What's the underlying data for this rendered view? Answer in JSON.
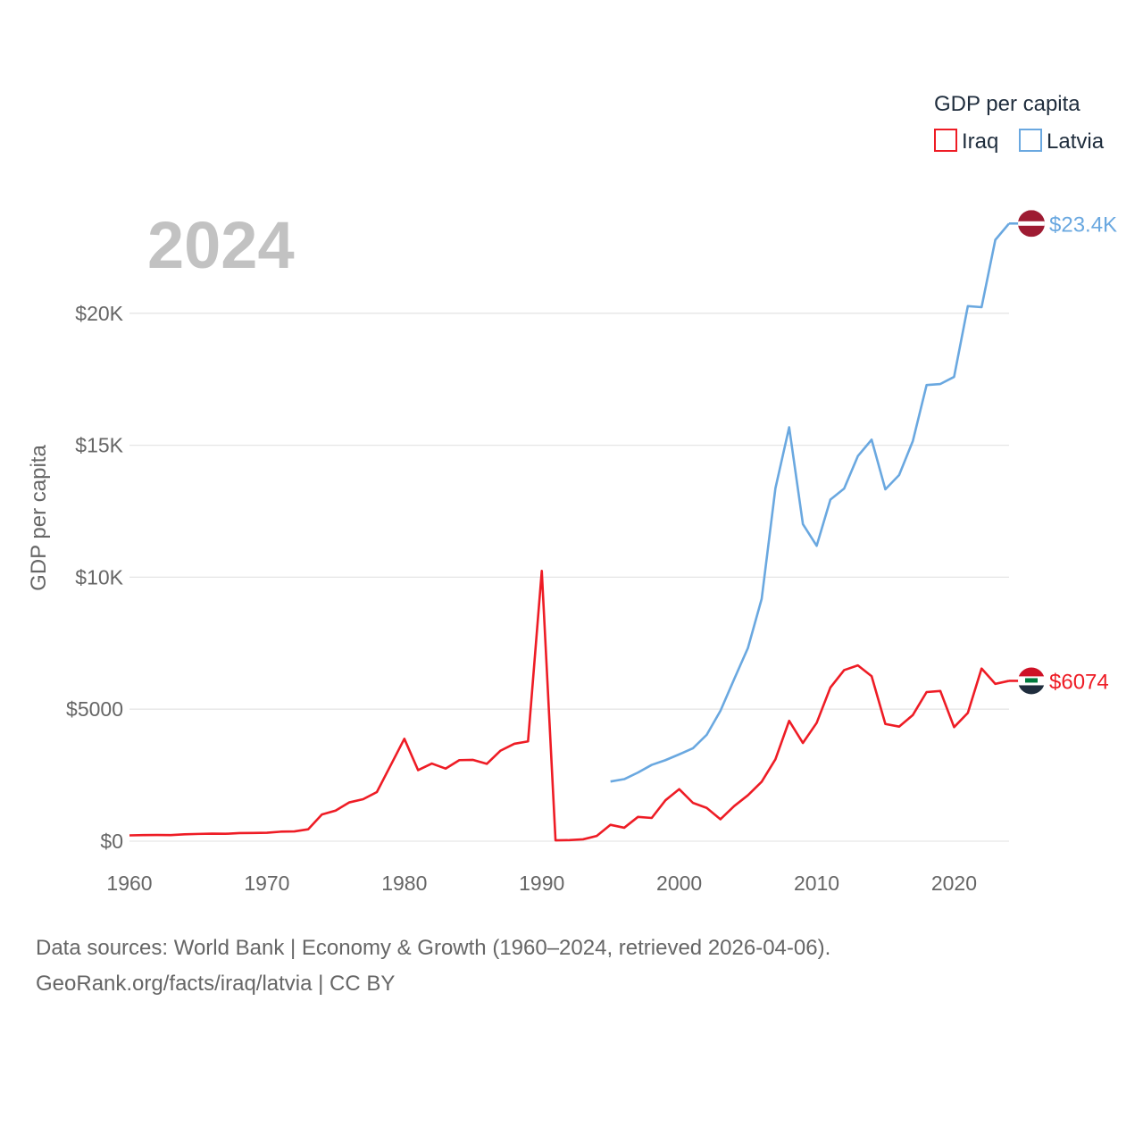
{
  "chart_data": {
    "type": "line",
    "year_label": "2024",
    "ylabel": "GDP per capita",
    "xlim": [
      1960,
      2024
    ],
    "ylim": [
      0,
      25000
    ],
    "x_ticks": [
      1960,
      1970,
      1980,
      1990,
      2000,
      2010,
      2020
    ],
    "y_ticks": [
      0,
      5000,
      10000,
      15000,
      20000
    ],
    "y_tick_labels": [
      "$0",
      "$5000",
      "$10K",
      "$15K",
      "$20K"
    ],
    "legend": {
      "title": "GDP per capita",
      "position": "top-right"
    },
    "series": [
      {
        "name": "Iraq",
        "color": "#ee1c25",
        "end_label": "$6074",
        "flag": "iraq-flag",
        "points": [
          [
            1960,
            220
          ],
          [
            1961,
            230
          ],
          [
            1962,
            235
          ],
          [
            1963,
            230
          ],
          [
            1964,
            260
          ],
          [
            1965,
            275
          ],
          [
            1966,
            285
          ],
          [
            1967,
            280
          ],
          [
            1968,
            305
          ],
          [
            1969,
            310
          ],
          [
            1970,
            320
          ],
          [
            1971,
            360
          ],
          [
            1972,
            370
          ],
          [
            1973,
            450
          ],
          [
            1974,
            1010
          ],
          [
            1975,
            1160
          ],
          [
            1976,
            1470
          ],
          [
            1977,
            1590
          ],
          [
            1978,
            1860
          ],
          [
            1979,
            2870
          ],
          [
            1980,
            3880
          ],
          [
            1981,
            2690
          ],
          [
            1982,
            2940
          ],
          [
            1983,
            2750
          ],
          [
            1984,
            3070
          ],
          [
            1985,
            3080
          ],
          [
            1986,
            2930
          ],
          [
            1987,
            3430
          ],
          [
            1988,
            3690
          ],
          [
            1989,
            3780
          ],
          [
            1990,
            10240
          ],
          [
            1991,
            30
          ],
          [
            1992,
            40
          ],
          [
            1993,
            70
          ],
          [
            1994,
            200
          ],
          [
            1995,
            620
          ],
          [
            1996,
            510
          ],
          [
            1997,
            920
          ],
          [
            1998,
            880
          ],
          [
            1999,
            1550
          ],
          [
            2000,
            1970
          ],
          [
            2001,
            1450
          ],
          [
            2002,
            1260
          ],
          [
            2003,
            830
          ],
          [
            2004,
            1330
          ],
          [
            2005,
            1740
          ],
          [
            2006,
            2250
          ],
          [
            2007,
            3100
          ],
          [
            2008,
            4560
          ],
          [
            2009,
            3720
          ],
          [
            2010,
            4480
          ],
          [
            2011,
            5820
          ],
          [
            2012,
            6480
          ],
          [
            2013,
            6660
          ],
          [
            2014,
            6250
          ],
          [
            2015,
            4440
          ],
          [
            2016,
            4340
          ],
          [
            2017,
            4780
          ],
          [
            2018,
            5650
          ],
          [
            2019,
            5690
          ],
          [
            2020,
            4320
          ],
          [
            2021,
            4860
          ],
          [
            2022,
            6540
          ],
          [
            2023,
            5960
          ],
          [
            2024,
            6074
          ]
        ]
      },
      {
        "name": "Latvia",
        "color": "#6aa8e0",
        "end_label": "$23.4K",
        "flag": "latvia-flag",
        "points": [
          [
            1995,
            2260
          ],
          [
            1996,
            2350
          ],
          [
            1997,
            2600
          ],
          [
            1998,
            2890
          ],
          [
            1999,
            3070
          ],
          [
            2000,
            3290
          ],
          [
            2001,
            3520
          ],
          [
            2002,
            4030
          ],
          [
            2003,
            4940
          ],
          [
            2004,
            6140
          ],
          [
            2005,
            7320
          ],
          [
            2006,
            9180
          ],
          [
            2007,
            13370
          ],
          [
            2008,
            15680
          ],
          [
            2009,
            12010
          ],
          [
            2010,
            11190
          ],
          [
            2011,
            12940
          ],
          [
            2012,
            13360
          ],
          [
            2013,
            14590
          ],
          [
            2014,
            15210
          ],
          [
            2015,
            13330
          ],
          [
            2016,
            13870
          ],
          [
            2017,
            15160
          ],
          [
            2018,
            17280
          ],
          [
            2019,
            17320
          ],
          [
            2020,
            17590
          ],
          [
            2021,
            20270
          ],
          [
            2022,
            20230
          ],
          [
            2023,
            22780
          ],
          [
            2024,
            23400
          ]
        ]
      }
    ]
  },
  "footer": {
    "source_line_1": "Data sources: World Bank | Economy & Growth (1960–2024, retrieved 2026-04-06).",
    "source_line_2": "GeoRank.org/facts/iraq/latvia | CC BY"
  }
}
